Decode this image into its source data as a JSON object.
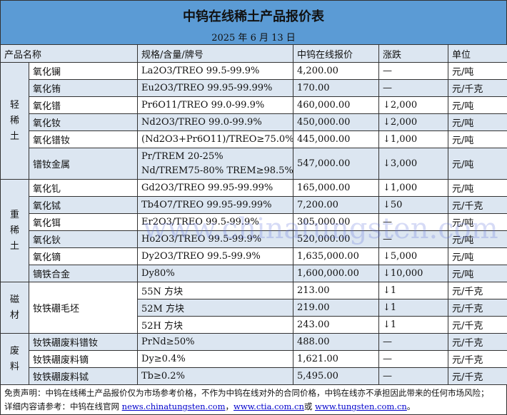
{
  "title": "中钨在线稀土产品报价表",
  "date": "2025 年 6 月 13 日",
  "headers": [
    "产品名称",
    "规格/含量/牌号",
    "中钨在线报价",
    "涨跌",
    "单位"
  ],
  "categories": {
    "light": "轻稀土",
    "heavy": "重稀土",
    "magnet": "磁材",
    "waste": "废料"
  },
  "rows": [
    {
      "name": "氧化镧",
      "spec": "La2O3/TREO 99.5-99.9%",
      "price": "4,200.00",
      "change": "—",
      "unit": "元/吨"
    },
    {
      "name": "氧化铕",
      "spec": "Eu2O3/TREO 99.95-99.99%",
      "price": "170.00",
      "change": "—",
      "unit": "元/千克"
    },
    {
      "name": "氧化镨",
      "spec": "Pr6O11/TREO 99.0-99.9%",
      "price": "460,000.00",
      "change": "↓2,000",
      "unit": "元/吨"
    },
    {
      "name": "氧化钕",
      "spec": "Nd2O3/TREO 99.0-99.9%",
      "price": "450,000.00",
      "change": "↓2,000",
      "unit": "元/吨"
    },
    {
      "name": "氧化镨钕",
      "spec": "(Nd2O3+Pr6O11)/TREO≥75.0%",
      "price": "445,000.00",
      "change": "↓1,000",
      "unit": "元/吨"
    },
    {
      "name": "镨钕金属",
      "spec": "Pr/TREM 20-25%",
      "spec2": "Nd/TREM75-80% TREM≥98.5%",
      "price": "547,000.00",
      "change": "↓3,000",
      "unit": "元/吨"
    },
    {
      "name": "氧化钆",
      "spec": "Gd2O3/TREO 99.95-99.99%",
      "price": "165,000.00",
      "change": "↓1,000",
      "unit": "元/吨"
    },
    {
      "name": "氧化铽",
      "spec": "Tb4O7/TREO 99.95-99.99%",
      "price": "7,200.00",
      "change": "↓50",
      "unit": "元/千克"
    },
    {
      "name": "氧化铒",
      "spec": "Er2O3/TREO 99.5-99.9%",
      "price": "305,000.00",
      "change": "—",
      "unit": "元/吨"
    },
    {
      "name": "氧化钬",
      "spec": "Ho2O3/TREO 99.5-99.9%",
      "price": "520,000.00",
      "change": "—",
      "unit": "元/吨"
    },
    {
      "name": "氧化镝",
      "spec": "Dy2O3/TREO 99.5-99.9%",
      "price": "1,635,000.00",
      "change": "↓5,000",
      "unit": "元/吨"
    },
    {
      "name": "镝铁合金",
      "spec": "Dy80%",
      "price": "1,600,000.00",
      "change": "↓10,000",
      "unit": "元/吨"
    },
    {
      "name": "钕铁硼毛坯",
      "spec": "55N 方块",
      "price": "213.00",
      "change": "↓1",
      "unit": "元/千克"
    },
    {
      "spec": "52M 方块",
      "price": "219.00",
      "change": "↓1",
      "unit": "元/千克"
    },
    {
      "spec": "52H 方块",
      "price": "243.00",
      "change": "↓1",
      "unit": "元/千克"
    },
    {
      "name": "钕铁硼废料镨钕",
      "spec": "PrNd≥50%",
      "price": "488.00",
      "change": "—",
      "unit": "元/千克"
    },
    {
      "name": "钕铁硼废料镝",
      "spec": "Dy≥0.4%",
      "price": "1,621.00",
      "change": "—",
      "unit": "元/千克"
    },
    {
      "name": "钕铁硼废料铽",
      "spec": "Tb≥0.2%",
      "price": "5,495.00",
      "change": "—",
      "unit": "元/千克"
    }
  ],
  "footer": {
    "disclaimer": "免责声明：中钨在线稀土产品报价仅为市场参考价格，不作为中钨在线对外的合同价格，中钨在线亦不承担因此带来的任何市场风险；",
    "ref_prefix": "详细内容请参考：中钨在线官网 ",
    "link1": "news.chinatungsten.com",
    "sep1": "，",
    "link2": "www.ctia.com.cn",
    "sep2": "或 ",
    "link3": "www.tungsten.com.cn",
    "end": "。"
  },
  "watermark": "www.chinatungsten.com",
  "colors": {
    "header_band": "#5b9bd5",
    "alt_row": "#dce6f1"
  }
}
